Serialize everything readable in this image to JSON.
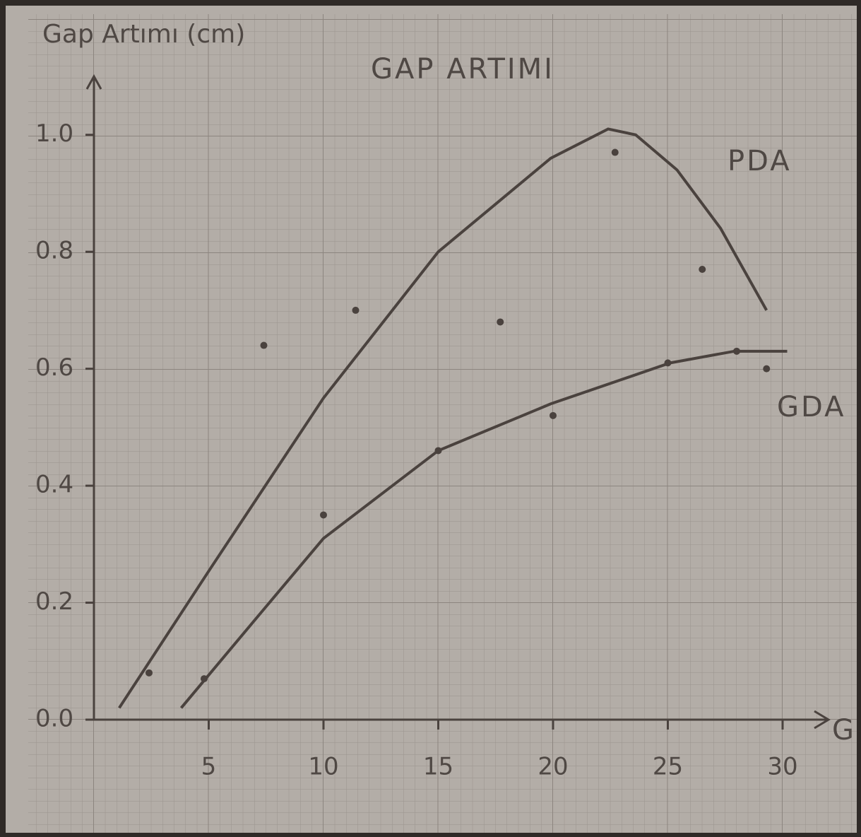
{
  "chart_data": {
    "type": "scatter",
    "title": "GAP ARTIMI",
    "y_label": "Gap Artımı (cm)",
    "x_label": "G",
    "xlim": [
      0,
      32
    ],
    "ylim": [
      0,
      1.1
    ],
    "xticks": [
      5,
      10,
      15,
      20,
      25,
      30
    ],
    "yticks": [
      {
        "value": 0,
        "label": "0.0"
      },
      0.2,
      0.4,
      0.6,
      0.8,
      {
        "value": 1,
        "label": "1.0"
      }
    ],
    "grid": true,
    "series": [
      {
        "name": "PDA",
        "color": "#4a423e",
        "x": [
          2.4,
          7.4,
          11.4,
          17.7,
          22.7,
          26.5
        ],
        "values": [
          0.08,
          0.64,
          0.7,
          0.68,
          0.97,
          0.77
        ],
        "curve_x": [
          1.1,
          5.1,
          10,
          15,
          19.9,
          22.4,
          23.6,
          25.4,
          27.3,
          29.3
        ],
        "curve_values": [
          0.02,
          0.26,
          0.55,
          0.8,
          0.96,
          1.01,
          1.0,
          0.94,
          0.84,
          0.7
        ]
      },
      {
        "name": "GDA",
        "color": "#4a423e",
        "x": [
          4.8,
          10,
          15,
          20,
          25,
          28,
          29.3
        ],
        "values": [
          0.07,
          0.35,
          0.46,
          0.52,
          0.61,
          0.63,
          0.6
        ],
        "curve_x": [
          3.8,
          7,
          10,
          15,
          19.9,
          25.1,
          27.9,
          30.2
        ],
        "curve_values": [
          0.02,
          0.17,
          0.31,
          0.46,
          0.54,
          0.61,
          0.63,
          0.63
        ]
      }
    ]
  }
}
